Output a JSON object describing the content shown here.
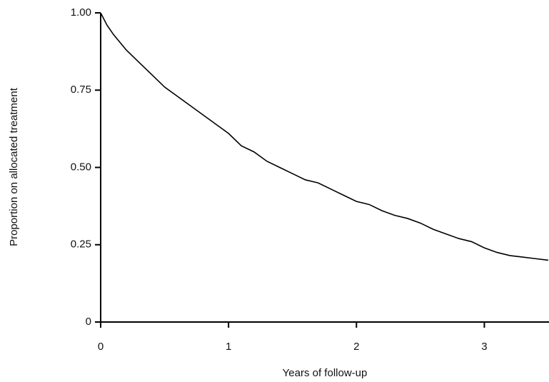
{
  "chart_data": {
    "type": "line",
    "x_label": "Years of follow-up",
    "y_label": "Proportion on allocated treatment",
    "x": [
      0,
      0.05,
      0.1,
      0.2,
      0.3,
      0.4,
      0.5,
      0.6,
      0.7,
      0.8,
      0.9,
      1.0,
      1.1,
      1.2,
      1.3,
      1.4,
      1.5,
      1.6,
      1.7,
      1.8,
      1.9,
      2.0,
      2.1,
      2.2,
      2.3,
      2.4,
      2.5,
      2.6,
      2.7,
      2.8,
      2.9,
      3.0,
      3.1,
      3.2,
      3.3,
      3.4,
      3.5
    ],
    "series": [
      {
        "color": "#000000",
        "values": [
          1.0,
          0.96,
          0.93,
          0.88,
          0.84,
          0.8,
          0.76,
          0.73,
          0.7,
          0.67,
          0.64,
          0.61,
          0.57,
          0.55,
          0.52,
          0.5,
          0.48,
          0.46,
          0.45,
          0.43,
          0.41,
          0.39,
          0.38,
          0.36,
          0.345,
          0.335,
          0.32,
          0.3,
          0.285,
          0.27,
          0.26,
          0.24,
          0.225,
          0.215,
          0.21,
          0.205,
          0.2
        ]
      }
    ],
    "xlim": [
      0,
      3.5
    ],
    "xticks": [
      0,
      1,
      2,
      3
    ],
    "ylim": [
      0,
      1
    ],
    "yticks": [
      0,
      0.25,
      {
        "value": 0.5,
        "label": "0.50"
      },
      0.75,
      {
        "value": 1,
        "label": "1.00"
      }
    ]
  }
}
